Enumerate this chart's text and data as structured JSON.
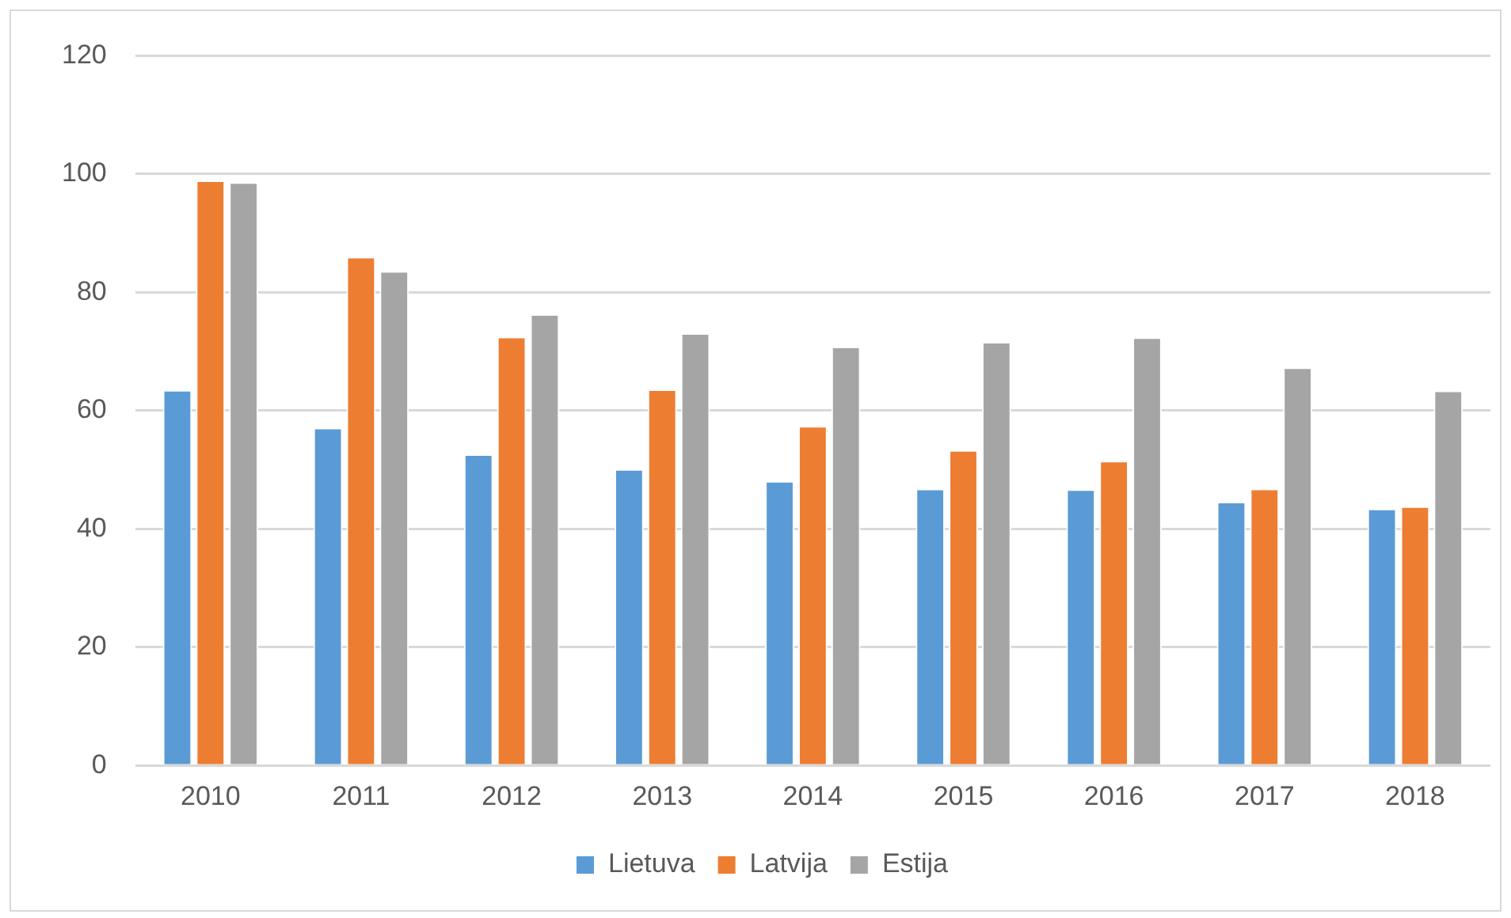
{
  "chart_data": {
    "type": "bar",
    "categories": [
      "2010",
      "2011",
      "2012",
      "2013",
      "2014",
      "2015",
      "2016",
      "2017",
      "2018"
    ],
    "series": [
      {
        "name": "Lietuva",
        "color": "#5b9bd5",
        "values": [
          63.5,
          57.1,
          52.6,
          50.1,
          48.1,
          46.8,
          46.7,
          44.6,
          43.4
        ]
      },
      {
        "name": "Latvija",
        "color": "#ed7d31",
        "values": [
          98.9,
          86.0,
          72.5,
          63.6,
          57.4,
          53.3,
          51.5,
          46.8,
          43.8
        ]
      },
      {
        "name": "Estija",
        "color": "#a5a5a5",
        "values": [
          98.6,
          83.6,
          76.3,
          73.1,
          70.8,
          71.6,
          72.4,
          67.3,
          63.4
        ]
      }
    ],
    "ylim": [
      0,
      120
    ],
    "yticks": [
      0,
      20,
      40,
      60,
      80,
      100,
      120
    ],
    "grid": "y",
    "legend": "bottom"
  }
}
